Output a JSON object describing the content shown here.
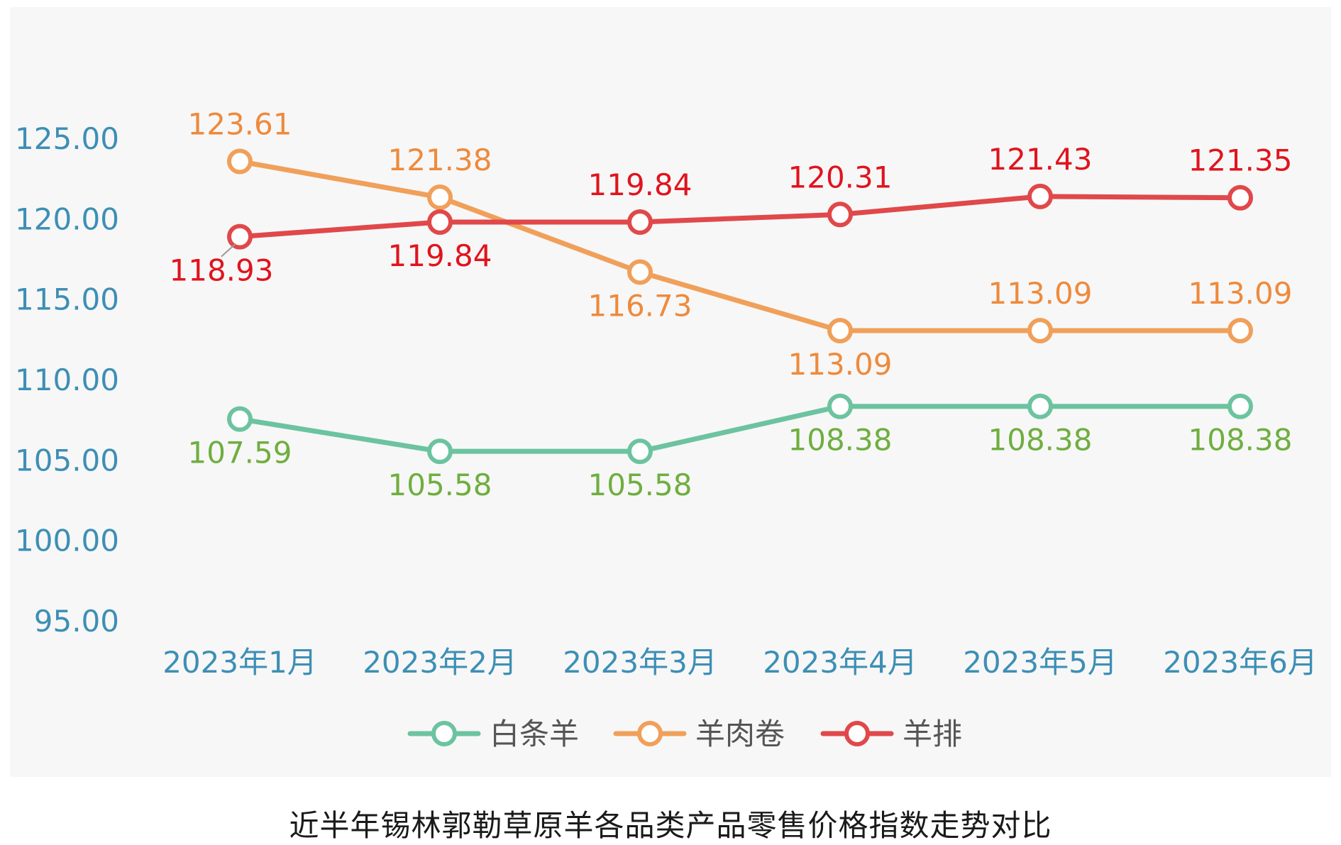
{
  "chart_data": {
    "type": "line",
    "categories": [
      "2023年1月",
      "2023年2月",
      "2023年3月",
      "2023年4月",
      "2023年5月",
      "2023年6月"
    ],
    "y_ticks": [
      "125.00",
      "120.00",
      "115.00",
      "110.00",
      "105.00",
      "100.00",
      "95.00"
    ],
    "ylim": [
      95,
      125
    ],
    "grid": false,
    "legend_position": "bottom-center",
    "series": [
      {
        "name": "白条羊",
        "color": "#6cc3a0",
        "label_color": "#6fae3f",
        "values": [
          107.59,
          105.58,
          105.58,
          108.38,
          108.38,
          108.38
        ],
        "labels": [
          "107.59",
          "105.58",
          "105.58",
          "108.38",
          "108.38",
          "108.38"
        ],
        "label_position": [
          "below",
          "below",
          "below",
          "below",
          "below",
          "below"
        ]
      },
      {
        "name": "羊肉卷",
        "color": "#f0a05a",
        "label_color": "#ee8a3c",
        "values": [
          123.61,
          121.38,
          116.73,
          113.09,
          113.09,
          113.09
        ],
        "labels": [
          "123.61",
          "121.38",
          "116.73",
          "113.09",
          "113.09",
          "113.09"
        ],
        "label_position": [
          "above",
          "above",
          "below",
          "below",
          "above",
          "above"
        ]
      },
      {
        "name": "羊排",
        "color": "#e0484a",
        "label_color": "#e0141e",
        "values": [
          118.93,
          119.84,
          119.84,
          120.31,
          121.43,
          121.35
        ],
        "labels": [
          "118.93",
          "119.84",
          "119.84",
          "120.31",
          "121.43",
          "121.35"
        ],
        "label_position": [
          "below",
          "below",
          "above",
          "above",
          "above",
          "above"
        ]
      }
    ]
  },
  "caption": "近半年锡林郭勒草原羊各品类产品零售价格指数走势对比"
}
